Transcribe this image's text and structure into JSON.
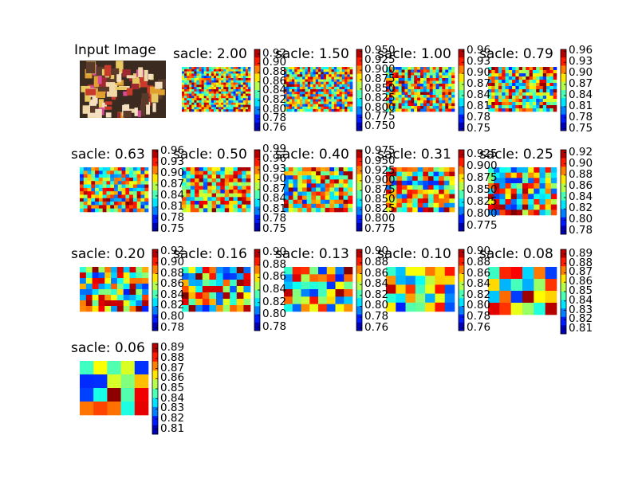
{
  "chart_data": {
    "type": "heatmap",
    "colormap": "jet",
    "input_image": {
      "title": "Input Image"
    },
    "panels": [
      {
        "title": "sacle: 2.00",
        "colorbar_ticks": [
          "0.92",
          "0.90",
          "0.88",
          "0.86",
          "0.84",
          "0.82",
          "0.80",
          "0.78",
          "0.76"
        ],
        "vmin": 0.755,
        "vmax": 0.93,
        "rows": 20,
        "cols": 28,
        "seed": 11
      },
      {
        "title": "sacle: 1.50",
        "colorbar_ticks": [
          "0.950",
          "0.925",
          "0.900",
          "0.875",
          "0.850",
          "0.825",
          "0.800",
          "0.775",
          "0.750"
        ],
        "vmin": 0.74,
        "vmax": 0.955,
        "rows": 18,
        "cols": 26,
        "seed": 23
      },
      {
        "title": "sacle: 1.00",
        "colorbar_ticks": [
          "0.96",
          "0.93",
          "0.90",
          "0.87",
          "0.84",
          "0.81",
          "0.78",
          "0.75"
        ],
        "vmin": 0.745,
        "vmax": 0.965,
        "rows": 16,
        "cols": 22,
        "seed": 37
      },
      {
        "title": "sacle: 0.79",
        "colorbar_ticks": [
          "0.96",
          "0.93",
          "0.90",
          "0.87",
          "0.84",
          "0.81",
          "0.78",
          "0.75"
        ],
        "vmin": 0.745,
        "vmax": 0.965,
        "rows": 14,
        "cols": 20,
        "seed": 41
      },
      {
        "title": "sacle: 0.63",
        "colorbar_ticks": [
          "0.96",
          "0.93",
          "0.90",
          "0.87",
          "0.84",
          "0.81",
          "0.78",
          "0.75"
        ],
        "vmin": 0.745,
        "vmax": 0.965,
        "rows": 13,
        "cols": 18,
        "seed": 53
      },
      {
        "title": "sacle: 0.50",
        "colorbar_ticks": [
          "0.99",
          "0.96",
          "0.93",
          "0.90",
          "0.87",
          "0.84",
          "0.81",
          "0.78",
          "0.75"
        ],
        "vmin": 0.745,
        "vmax": 0.99,
        "rows": 12,
        "cols": 16,
        "seed": 61
      },
      {
        "title": "sacle: 0.40",
        "colorbar_ticks": [
          "0.975",
          "0.950",
          "0.925",
          "0.900",
          "0.875",
          "0.850",
          "0.825",
          "0.800",
          "0.775"
        ],
        "vmin": 0.77,
        "vmax": 0.98,
        "rows": 11,
        "cols": 15,
        "seed": 71
      },
      {
        "title": "sacle: 0.31",
        "colorbar_ticks": [
          "0.925",
          "0.900",
          "0.875",
          "0.850",
          "0.825",
          "0.800",
          "0.775"
        ],
        "vmin": 0.765,
        "vmax": 0.935,
        "rows": 10,
        "cols": 13,
        "seed": 83
      },
      {
        "title": "sacle: 0.25",
        "colorbar_ticks": [
          "0.92",
          "0.90",
          "0.88",
          "0.86",
          "0.84",
          "0.82",
          "0.80",
          "0.78"
        ],
        "vmin": 0.775,
        "vmax": 0.925,
        "rows": 9,
        "cols": 12,
        "seed": 97
      },
      {
        "title": "sacle: 0.20",
        "colorbar_ticks": [
          "0.92",
          "0.90",
          "0.88",
          "0.86",
          "0.84",
          "0.82",
          "0.80",
          "0.78"
        ],
        "vmin": 0.775,
        "vmax": 0.925,
        "rows": 8,
        "cols": 11,
        "seed": 101
      },
      {
        "title": "sacle: 0.16",
        "colorbar_ticks": [
          "0.90",
          "0.88",
          "0.86",
          "0.84",
          "0.82",
          "0.80",
          "0.78"
        ],
        "vmin": 0.775,
        "vmax": 0.905,
        "rows": 7,
        "cols": 10,
        "seed": 113
      },
      {
        "title": "sacle: 0.13",
        "colorbar_ticks": [
          "0.90",
          "0.88",
          "0.86",
          "0.84",
          "0.82",
          "0.80",
          "0.78",
          "0.76"
        ],
        "vmin": 0.755,
        "vmax": 0.905,
        "rows": 6,
        "cols": 8,
        "seed": 127
      },
      {
        "title": "sacle: 0.10",
        "colorbar_ticks": [
          "0.90",
          "0.88",
          "0.86",
          "0.84",
          "0.82",
          "0.80",
          "0.78",
          "0.76"
        ],
        "vmin": 0.755,
        "vmax": 0.905,
        "rows": 5,
        "cols": 7,
        "seed": 131
      },
      {
        "title": "sacle: 0.08",
        "colorbar_ticks": [
          "0.89",
          "0.88",
          "0.87",
          "0.86",
          "0.85",
          "0.84",
          "0.83",
          "0.82",
          "0.81"
        ],
        "vmin": 0.805,
        "vmax": 0.895,
        "rows": 4,
        "cols": 6,
        "seed": 149
      },
      {
        "title": "sacle: 0.06",
        "colorbar_ticks": [
          "0.89",
          "0.88",
          "0.87",
          "0.86",
          "0.85",
          "0.84",
          "0.83",
          "0.82",
          "0.81"
        ],
        "vmin": 0.805,
        "vmax": 0.895,
        "rows": 4,
        "cols": 5,
        "seed": 157
      }
    ]
  }
}
